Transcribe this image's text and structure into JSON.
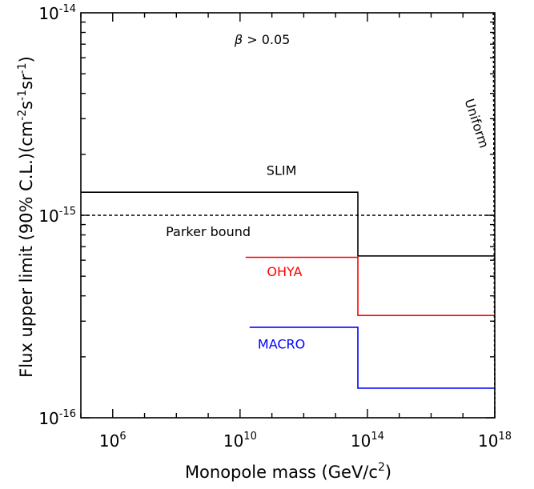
{
  "chart_data": {
    "type": "line",
    "title": "",
    "xlabel": {
      "text": "Monopole mass (GeV/c",
      "sup": "2",
      "tail": ")"
    },
    "ylabel": [
      {
        "t": "Flux upper limit (90% C.L.)(cm"
      },
      {
        "t": "-2",
        "sup": true
      },
      {
        "t": "s"
      },
      {
        "t": "-1",
        "sup": true
      },
      {
        "t": "sr"
      },
      {
        "t": "-1",
        "sup": true
      },
      {
        "t": ")"
      }
    ],
    "x_scale": "log",
    "y_scale": "log",
    "xlim": [
      100000,
      1e+18
    ],
    "ylim": [
      1e-16,
      1e-14
    ],
    "x_ticks": [
      {
        "value": 1000000,
        "base": "10",
        "exp": "6"
      },
      {
        "value": 10000000000,
        "base": "10",
        "exp": "10"
      },
      {
        "value": 100000000000000,
        "base": "10",
        "exp": "14"
      },
      {
        "value": 1e+18,
        "base": "10",
        "exp": "18"
      }
    ],
    "y_ticks": [
      {
        "value": 1e-16,
        "base": "10",
        "exp": "-16"
      },
      {
        "value": 1e-15,
        "base": "10",
        "exp": "-15"
      },
      {
        "value": 1e-14,
        "base": "10",
        "exp": "-14"
      }
    ],
    "grid": false,
    "legend": "none",
    "series": [
      {
        "name": "SLIM",
        "color": "#000000",
        "style": "solid",
        "x": [
          100000,
          50000000000000,
          50000000000000,
          1e+18
        ],
        "y": [
          1.3e-15,
          1.3e-15,
          6.3e-16,
          6.3e-16
        ]
      },
      {
        "name": "OHYA",
        "color": "#ff0000",
        "style": "solid",
        "x": [
          15000000000,
          50000000000000,
          50000000000000,
          1e+18
        ],
        "y": [
          6.2e-16,
          6.2e-16,
          3.2e-16,
          3.2e-16
        ]
      },
      {
        "name": "MACRO",
        "color": "#0000ff",
        "style": "solid",
        "x": [
          20000000000,
          50000000000000,
          50000000000000,
          1e+18
        ],
        "y": [
          2.8e-16,
          2.8e-16,
          1.4e-16,
          1.4e-16
        ]
      },
      {
        "name": "Parker bound",
        "color": "#000000",
        "style": "dashed",
        "x": [
          100000,
          1e+18
        ],
        "y": [
          1e-15,
          1e-15
        ]
      },
      {
        "name": "Uniform",
        "color": "#000000",
        "style": "dotted",
        "x": [
          900000000000000000,
          1e+18
        ],
        "y": [
          1e-14,
          1e-16
        ]
      }
    ],
    "annotations": [
      {
        "name": "beta-label",
        "text": "β > 0.05",
        "x": 50000000000,
        "y": 7e-15,
        "color": "#000000"
      },
      {
        "name": "uniform-label",
        "text": "Uniform",
        "x": 2e+17,
        "y": 2.8e-15,
        "color": "#000000",
        "rotate": 72
      },
      {
        "name": "slim-label",
        "text": "SLIM",
        "x": 200000000000,
        "y": 1.58e-15,
        "color": "#000000"
      },
      {
        "name": "parker-label",
        "text": "Parker bound",
        "x": 1000000000,
        "y": 7.9e-16,
        "color": "#000000"
      },
      {
        "name": "ohya-label",
        "text": "OHYA",
        "x": 250000000000,
        "y": 5e-16,
        "color": "#ff0000"
      },
      {
        "name": "macro-label",
        "text": "MACRO",
        "x": 200000000000,
        "y": 2.2e-16,
        "color": "#0000ff"
      }
    ]
  }
}
